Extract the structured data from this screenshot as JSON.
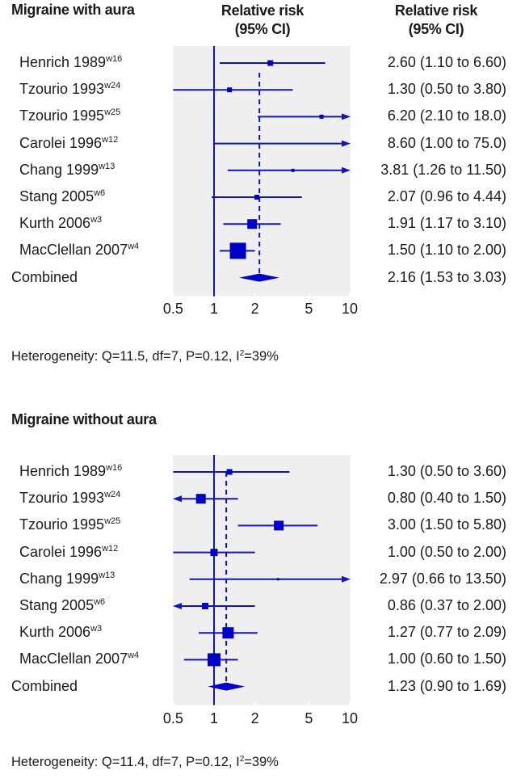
{
  "chart_data": [
    {
      "type": "forest",
      "title": "Migraine with aura",
      "column_header_plot": [
        "Relative risk",
        "(95% CI)"
      ],
      "column_header_values": [
        "Relative risk",
        "(95% CI)"
      ],
      "x_scale": "log",
      "xlim": [
        0.5,
        10
      ],
      "x_ticks": [
        "0.5",
        "1",
        "2",
        "5",
        "10"
      ],
      "x_tick_values": [
        0.5,
        1,
        2,
        5,
        10
      ],
      "reference_line": 1,
      "studies": [
        {
          "name": "Henrich 1989",
          "ref": "w16",
          "rr": 2.6,
          "lo": 1.1,
          "hi": 6.6,
          "weight": 7,
          "label": "2.60 (1.10 to 6.60)"
        },
        {
          "name": "Tzourio 1993",
          "ref": "w24",
          "rr": 1.3,
          "lo": 0.5,
          "hi": 3.8,
          "weight": 6,
          "label": "1.30 (0.50 to 3.80)"
        },
        {
          "name": "Tzourio 1995",
          "ref": "w25",
          "rr": 6.2,
          "lo": 2.1,
          "hi": 18.0,
          "weight": 5,
          "label": "6.20 (2.10 to 18.0)"
        },
        {
          "name": "Carolei 1996",
          "ref": "w12",
          "rr": 8.6,
          "lo": 1.0,
          "hi": 75.0,
          "weight": 0,
          "label": "8.60 (1.00 to 75.0)"
        },
        {
          "name": "Chang 1999",
          "ref": "w13",
          "rr": 3.81,
          "lo": 1.26,
          "hi": 11.5,
          "weight": 4,
          "label": "3.81 (1.26 to 11.50)"
        },
        {
          "name": "Stang 2005",
          "ref": "w6",
          "rr": 2.07,
          "lo": 0.96,
          "hi": 4.44,
          "weight": 6,
          "label": "2.07 (0.96 to 4.44)"
        },
        {
          "name": "Kurth 2006",
          "ref": "w3",
          "rr": 1.91,
          "lo": 1.17,
          "hi": 3.1,
          "weight": 12,
          "label": "1.91 (1.17 to 3.10)"
        },
        {
          "name": "MacClellan 2007",
          "ref": "w4",
          "rr": 1.5,
          "lo": 1.1,
          "hi": 2.0,
          "weight": 20,
          "label": "1.50 (1.10 to 2.00)"
        }
      ],
      "combined": {
        "name": "Combined",
        "rr": 2.16,
        "lo": 1.53,
        "hi": 3.03,
        "label": "2.16 (1.53 to 3.03)"
      },
      "heterogeneity": {
        "prefix": "Heterogeneity: Q=11.5, df=7, P=0.12, I",
        "sup": "2",
        "suffix": "=39%"
      }
    },
    {
      "type": "forest",
      "title": "Migraine without aura",
      "x_scale": "log",
      "xlim": [
        0.5,
        10
      ],
      "x_ticks": [
        "0.5",
        "1",
        "2",
        "5",
        "10"
      ],
      "x_tick_values": [
        0.5,
        1,
        2,
        5,
        10
      ],
      "reference_line": 1,
      "studies": [
        {
          "name": "Henrich 1989",
          "ref": "w16",
          "rr": 1.3,
          "lo": 0.5,
          "hi": 3.6,
          "weight": 7,
          "label": "1.30 (0.50 to 3.60)"
        },
        {
          "name": "Tzourio 1993",
          "ref": "w24",
          "rr": 0.8,
          "lo": 0.4,
          "hi": 1.5,
          "weight": 12,
          "label": "0.80 (0.40 to 1.50)"
        },
        {
          "name": "Tzourio 1995",
          "ref": "w25",
          "rr": 3.0,
          "lo": 1.5,
          "hi": 5.8,
          "weight": 12,
          "label": "3.00 (1.50 to 5.80)"
        },
        {
          "name": "Carolei 1996",
          "ref": "w12",
          "rr": 1.0,
          "lo": 0.5,
          "hi": 2.0,
          "weight": 9,
          "label": "1.00 (0.50 to 2.00)"
        },
        {
          "name": "Chang 1999",
          "ref": "w13",
          "rr": 2.97,
          "lo": 0.66,
          "hi": 13.5,
          "weight": 3,
          "label": "2.97 (0.66 to 13.50)"
        },
        {
          "name": "Stang 2005",
          "ref": "w6",
          "rr": 0.86,
          "lo": 0.37,
          "hi": 2.0,
          "weight": 8,
          "label": "0.86 (0.37 to 2.00)"
        },
        {
          "name": "Kurth 2006",
          "ref": "w3",
          "rr": 1.27,
          "lo": 0.77,
          "hi": 2.09,
          "weight": 14,
          "label": "1.27 (0.77 to 2.09)"
        },
        {
          "name": "MacClellan 2007",
          "ref": "w4",
          "rr": 1.0,
          "lo": 0.6,
          "hi": 1.5,
          "weight": 16,
          "label": "1.00 (0.60 to 1.50)"
        }
      ],
      "combined": {
        "name": "Combined",
        "rr": 1.23,
        "lo": 0.9,
        "hi": 1.69,
        "label": "1.23 (0.90 to 1.69)"
      },
      "heterogeneity": {
        "prefix": "Heterogeneity: Q=11.4, df=7, P=0.12, I",
        "sup": "2",
        "suffix": "=39%"
      }
    }
  ],
  "colors": {
    "marker": "#0000c8",
    "line": "#1414b4",
    "plot_bg": "#efefef",
    "text": "#1a1a1a"
  }
}
